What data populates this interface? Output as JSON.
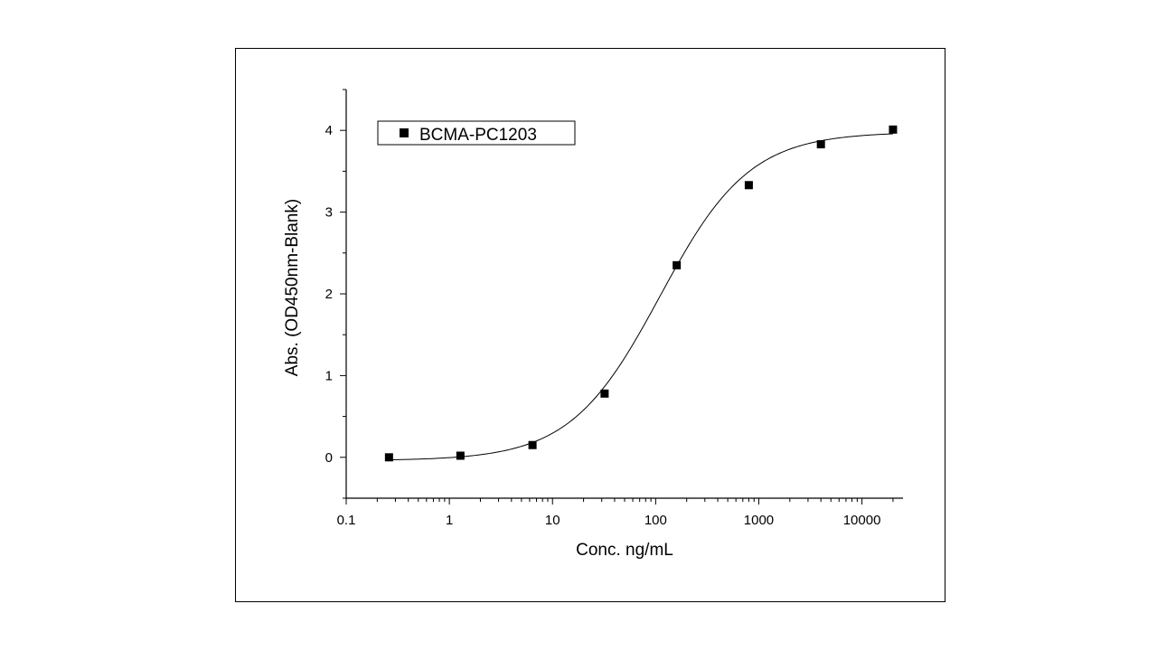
{
  "chart_data": {
    "type": "scatter",
    "xscale": "log",
    "xlabel": "Conc. ng/mL",
    "ylabel": "Abs. (OD450nm-Blank)",
    "xlim": [
      0.1,
      25000
    ],
    "ylim": [
      -0.5,
      4.5
    ],
    "xticks": [
      0.1,
      1,
      10,
      100,
      1000,
      10000
    ],
    "xtick_labels": [
      "0.1",
      "1",
      "10",
      "100",
      "1000",
      "10000"
    ],
    "yticks": [
      0,
      1,
      2,
      3,
      4
    ],
    "ytick_labels": [
      "0",
      "1",
      "2",
      "3",
      "4"
    ],
    "legend_placement": "top-left",
    "grid": false,
    "series": [
      {
        "name": "BCMA-PC1203",
        "marker": "square",
        "color": "#000000",
        "x": [
          0.26,
          1.28,
          6.4,
          32,
          160,
          800,
          4000,
          20000
        ],
        "y": [
          0.0,
          0.02,
          0.15,
          0.78,
          2.35,
          3.33,
          3.83,
          4.01
        ]
      }
    ],
    "fit_curve": {
      "model": "4PL",
      "bottom": -0.04,
      "top": 3.98,
      "ec50": 110,
      "hill": 1.0,
      "color": "#000000"
    }
  }
}
